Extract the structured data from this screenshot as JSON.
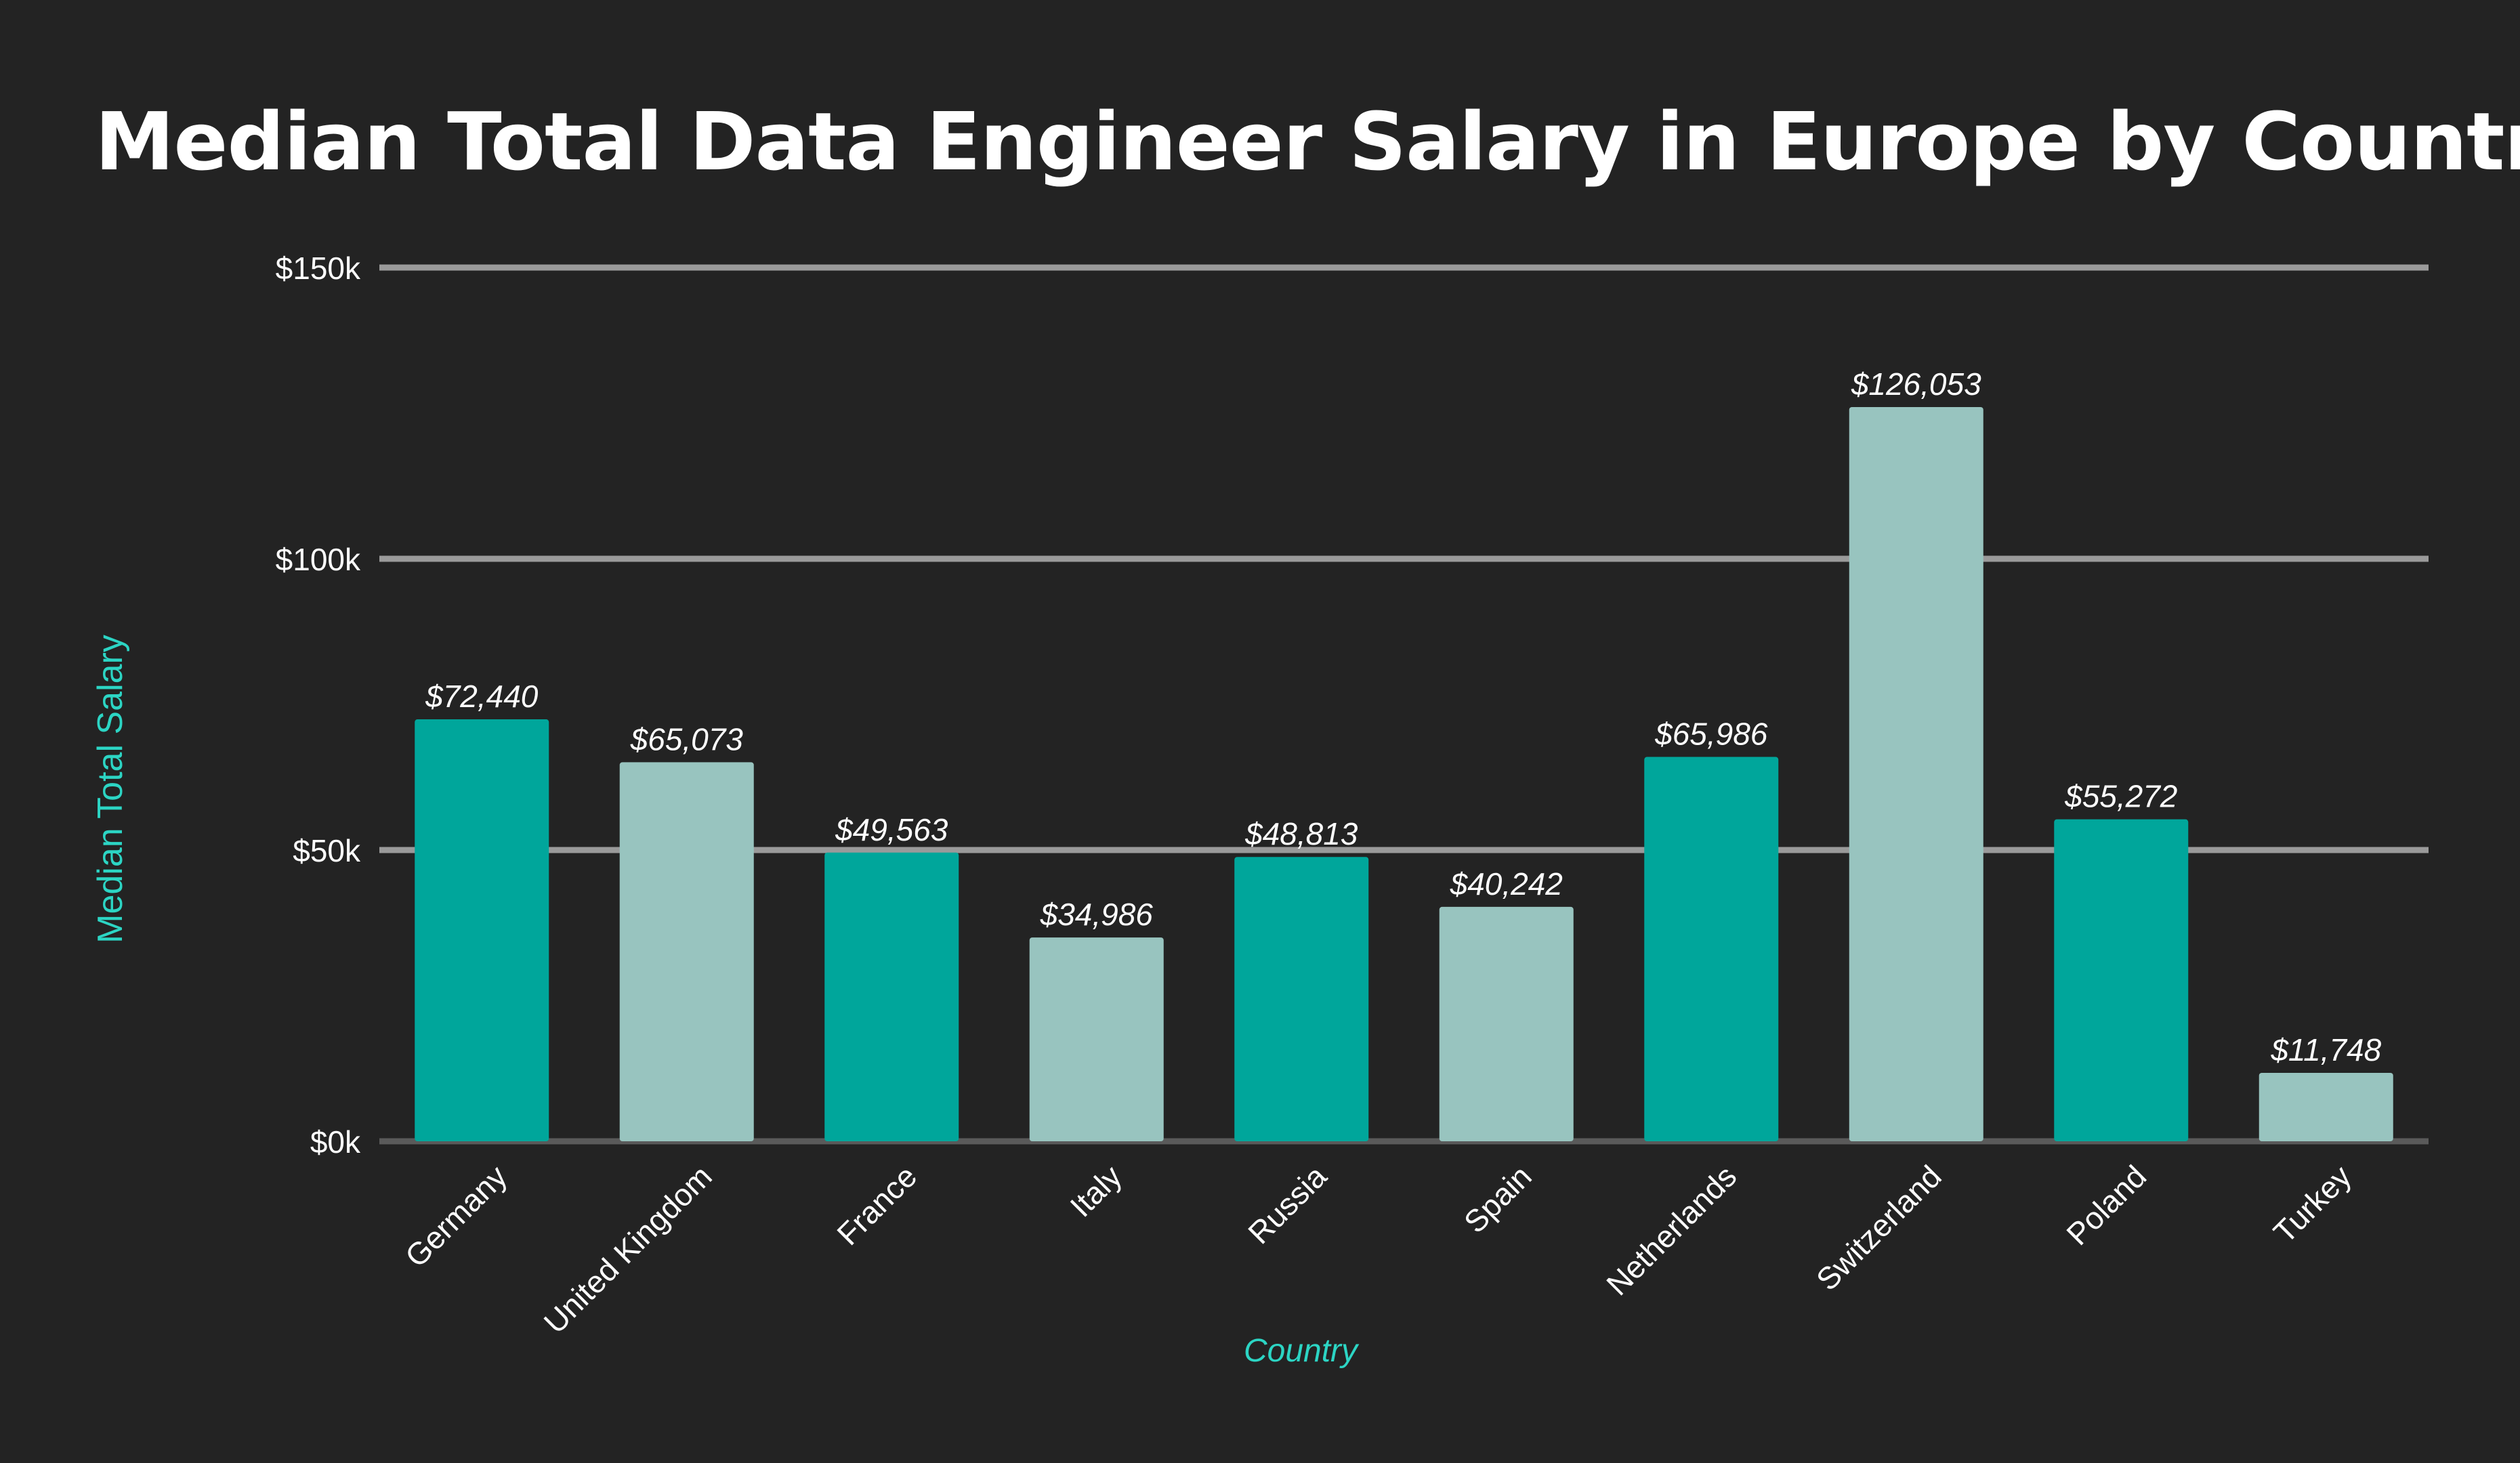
{
  "chart_data": {
    "type": "bar",
    "title": "Median Total Data Engineer Salary in Europe by Country",
    "xlabel": "Country",
    "ylabel": "Median Total Salary",
    "categories": [
      "Germany",
      "United Kingdom",
      "France",
      "Italy",
      "Russia",
      "Spain",
      "Netherlands",
      "Switzerland",
      "Poland",
      "Turkey"
    ],
    "values": [
      72440,
      65073,
      49563,
      34986,
      48813,
      40242,
      65986,
      126053,
      55272,
      11748
    ],
    "data_labels": [
      "$72,440",
      "$65,073",
      "$49,563",
      "$34,986",
      "$48,813",
      "$40,242",
      "$65,986",
      "$126,053",
      "$55,272",
      "$11,748"
    ],
    "ylim": [
      0,
      150000
    ],
    "yticks": [
      0,
      50000,
      100000,
      150000
    ],
    "ytick_labels": [
      "$0k",
      "$50k",
      "$100k",
      "$150k"
    ],
    "grid": true,
    "bar_colors": [
      "#00A69B",
      "#98C4BF",
      "#00A69B",
      "#98C4BF",
      "#00A69B",
      "#98C4BF",
      "#00A69B",
      "#98C4BF",
      "#00A69B",
      "#98C4BF"
    ],
    "axis_label_color": "#2CD5C4",
    "gridline_color": "#9A9A9A",
    "text_color": "#FFFFFF",
    "background_color": "#232323"
  }
}
